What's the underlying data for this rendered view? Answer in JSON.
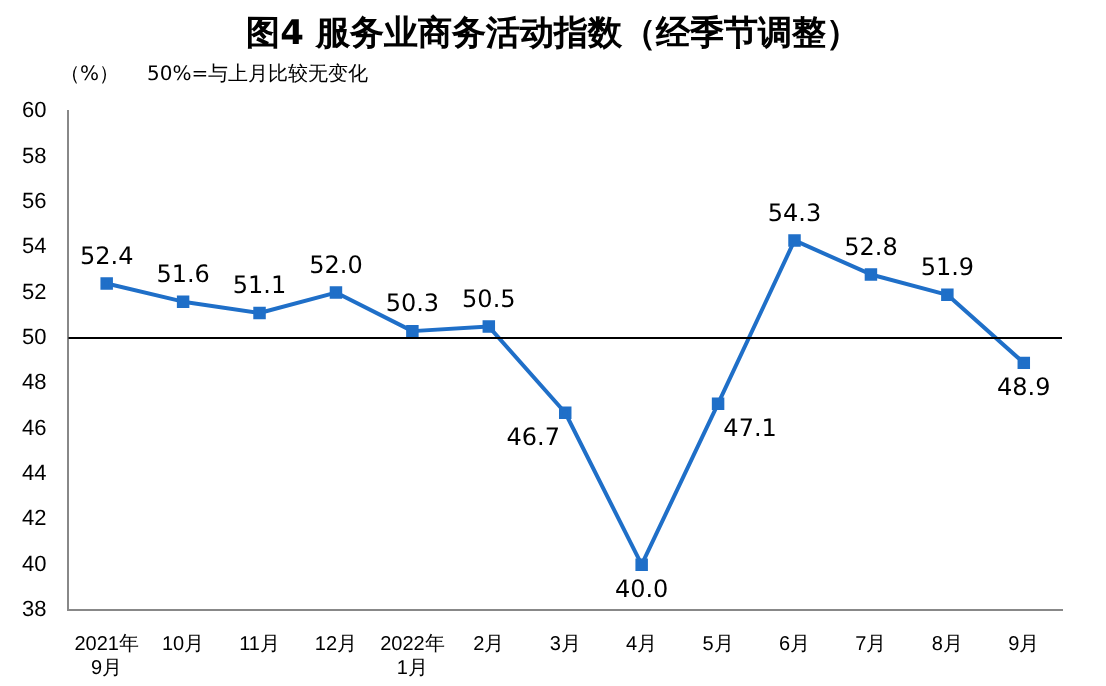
{
  "chart_data": {
    "type": "line",
    "title": "图4  服务业商务活动指数（经季节调整）",
    "annotations": [
      "（%）",
      "50%=与上月比较无变化"
    ],
    "categories": [
      "2021年\n9月",
      "10月",
      "11月",
      "12月",
      "2022年\n1月",
      "2月",
      "3月",
      "4月",
      "5月",
      "6月",
      "7月",
      "8月",
      "9月"
    ],
    "series": [
      {
        "color": "#1f6fc8",
        "values": [
          52.4,
          51.6,
          51.1,
          52.0,
          50.3,
          50.5,
          46.7,
          40.0,
          47.1,
          54.3,
          52.8,
          51.9,
          48.9
        ],
        "value_labels": [
          "52.4",
          "51.6",
          "51.1",
          "52.0",
          "50.3",
          "50.5",
          "46.7",
          "40.0",
          "47.1",
          "54.3",
          "52.8",
          "51.9",
          "48.9"
        ]
      }
    ],
    "ylim": [
      38,
      60
    ],
    "yticks": [
      38,
      40,
      42,
      44,
      46,
      48,
      50,
      52,
      54,
      56,
      58,
      60
    ],
    "ref_lines": [
      {
        "axis": "y",
        "value": 50,
        "color": "#000000"
      }
    ],
    "marker": "square",
    "grid": false,
    "legend": false
  }
}
